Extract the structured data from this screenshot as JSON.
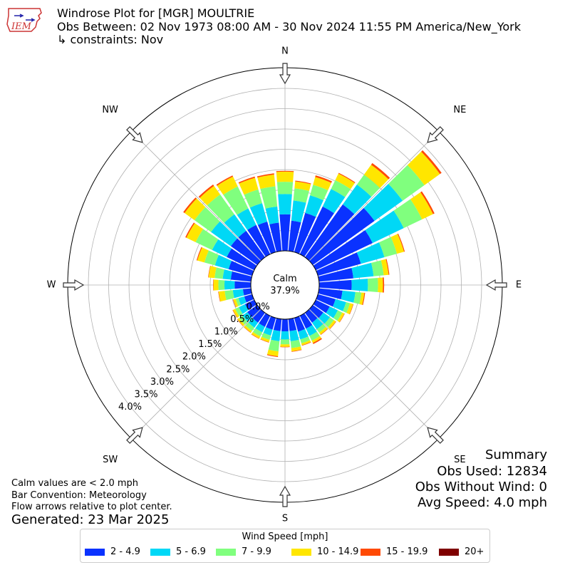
{
  "logo_text": "IEM",
  "header": {
    "title": "Windrose Plot for [MGR] MOULTRIE",
    "subtitle": "Obs Between: 02 Nov 1973 08:00 AM - 30 Nov 2024 11:55 PM America/New_York",
    "constraints": "↳ constraints: Nov"
  },
  "summary": {
    "heading": "Summary",
    "obs_used": "Obs Used: 12834",
    "obs_without_wind": "Obs Without Wind: 0",
    "avg_speed": "Avg Speed: 4.0 mph"
  },
  "notes": {
    "calm_def": "Calm values are < 2.0 mph",
    "bar_convention": "Bar Convention: Meteorology",
    "flow_arrows": "Flow arrows relative to plot center.",
    "generated": "Generated: 23 Mar 2025"
  },
  "chart_data": {
    "type": "windrose",
    "calm_label": "Calm",
    "calm_value": "37.9%",
    "directions": [
      "N",
      "NE",
      "E",
      "SE",
      "S",
      "SW",
      "W",
      "NW"
    ],
    "radial_tick_labels": [
      "0.0%",
      "0.5%",
      "1.0%",
      "1.5%",
      "2.0%",
      "2.5%",
      "3.0%",
      "3.5%",
      "4.0%"
    ],
    "radial_ticks": [
      0,
      0.5,
      1.0,
      1.5,
      2.0,
      2.5,
      3.0,
      3.5,
      4.0
    ],
    "legend_title": "Wind Speed [mph]",
    "bins": [
      {
        "label": "2 - 4.9",
        "color": "#0a32ff"
      },
      {
        "label": "5 - 6.9",
        "color": "#00d8f6"
      },
      {
        "label": "7 - 9.9",
        "color": "#80ff7e"
      },
      {
        "label": "10 - 14.9",
        "color": "#ffe600"
      },
      {
        "label": "15 - 19.9",
        "color": "#ff4a04"
      },
      {
        "label": "20+",
        "color": "#7f0000"
      }
    ],
    "bar_convention": "meteorology (from direction)",
    "sectors": [
      {
        "dir_deg": 0,
        "cum": [
          0.9,
          1.4,
          1.7,
          1.95,
          1.97,
          1.97
        ]
      },
      {
        "dir_deg": 10,
        "cum": [
          0.75,
          1.25,
          1.55,
          1.72,
          1.74,
          1.74
        ]
      },
      {
        "dir_deg": 20,
        "cum": [
          1.0,
          1.45,
          1.72,
          1.92,
          1.96,
          1.96
        ]
      },
      {
        "dir_deg": 30,
        "cum": [
          1.3,
          1.78,
          2.02,
          2.2,
          2.22,
          2.22
        ]
      },
      {
        "dir_deg": 40,
        "cum": [
          1.6,
          2.2,
          2.5,
          2.8,
          2.85,
          2.85
        ]
      },
      {
        "dir_deg": 50,
        "cum": [
          1.87,
          2.72,
          3.38,
          3.85,
          3.9,
          3.9
        ]
      },
      {
        "dir_deg": 60,
        "cum": [
          1.55,
          2.4,
          2.9,
          3.2,
          3.24,
          3.24
        ]
      },
      {
        "dir_deg": 70,
        "cum": [
          1.1,
          1.7,
          2.02,
          2.2,
          2.22,
          2.22
        ]
      },
      {
        "dir_deg": 80,
        "cum": [
          0.85,
          1.35,
          1.6,
          1.72,
          1.74,
          1.74
        ]
      },
      {
        "dir_deg": 90,
        "cum": [
          0.8,
          1.2,
          1.45,
          1.57,
          1.6,
          1.6
        ]
      },
      {
        "dir_deg": 100,
        "cum": [
          0.58,
          0.9,
          1.05,
          1.12,
          1.14,
          1.14
        ]
      },
      {
        "dir_deg": 110,
        "cum": [
          0.45,
          0.72,
          0.82,
          0.9,
          0.91,
          0.91
        ]
      },
      {
        "dir_deg": 120,
        "cum": [
          0.38,
          0.6,
          0.72,
          0.78,
          0.79,
          0.79
        ]
      },
      {
        "dir_deg": 130,
        "cum": [
          0.32,
          0.52,
          0.64,
          0.7,
          0.71,
          0.71
        ]
      },
      {
        "dir_deg": 140,
        "cum": [
          0.3,
          0.5,
          0.6,
          0.66,
          0.67,
          0.67
        ]
      },
      {
        "dir_deg": 150,
        "cum": [
          0.35,
          0.55,
          0.68,
          0.74,
          0.77,
          0.77
        ]
      },
      {
        "dir_deg": 160,
        "cum": [
          0.35,
          0.55,
          0.65,
          0.7,
          0.71,
          0.71
        ]
      },
      {
        "dir_deg": 170,
        "cum": [
          0.3,
          0.55,
          0.72,
          0.8,
          0.81,
          0.81
        ]
      },
      {
        "dir_deg": 180,
        "cum": [
          0.3,
          0.5,
          0.62,
          0.68,
          0.69,
          0.69
        ]
      },
      {
        "dir_deg": 190,
        "cum": [
          0.3,
          0.55,
          0.8,
          0.92,
          0.94,
          0.94
        ]
      },
      {
        "dir_deg": 200,
        "cum": [
          0.3,
          0.45,
          0.56,
          0.62,
          0.63,
          0.63
        ]
      },
      {
        "dir_deg": 210,
        "cum": [
          0.3,
          0.45,
          0.56,
          0.62,
          0.63,
          0.63
        ]
      },
      {
        "dir_deg": 220,
        "cum": [
          0.3,
          0.45,
          0.55,
          0.6,
          0.61,
          0.61
        ]
      },
      {
        "dir_deg": 230,
        "cum": [
          0.3,
          0.45,
          0.55,
          0.6,
          0.61,
          0.61
        ]
      },
      {
        "dir_deg": 240,
        "cum": [
          0.25,
          0.42,
          0.52,
          0.58,
          0.59,
          0.59
        ]
      },
      {
        "dir_deg": 250,
        "cum": [
          0.2,
          0.35,
          0.42,
          0.48,
          0.49,
          0.49
        ]
      },
      {
        "dir_deg": 260,
        "cum": [
          0.2,
          0.45,
          0.65,
          0.8,
          0.81,
          0.81
        ]
      },
      {
        "dir_deg": 270,
        "cum": [
          0.4,
          0.65,
          0.8,
          0.92,
          0.93,
          0.93
        ]
      },
      {
        "dir_deg": 280,
        "cum": [
          0.5,
          0.7,
          0.9,
          1.05,
          1.06,
          1.06
        ]
      },
      {
        "dir_deg": 290,
        "cum": [
          0.6,
          0.95,
          1.22,
          1.4,
          1.42,
          1.42
        ]
      },
      {
        "dir_deg": 300,
        "cum": [
          0.75,
          1.15,
          1.6,
          1.85,
          1.88,
          1.88
        ]
      },
      {
        "dir_deg": 310,
        "cum": [
          0.8,
          1.4,
          1.9,
          2.2,
          2.24,
          2.24
        ]
      },
      {
        "dir_deg": 320,
        "cum": [
          0.8,
          1.3,
          1.9,
          2.16,
          2.2,
          2.2
        ]
      },
      {
        "dir_deg": 330,
        "cum": [
          0.8,
          1.25,
          1.85,
          2.12,
          2.15,
          2.15
        ]
      },
      {
        "dir_deg": 340,
        "cum": [
          0.78,
          1.25,
          1.6,
          1.9,
          1.93,
          1.93
        ]
      },
      {
        "dir_deg": 350,
        "cum": [
          0.7,
          1.1,
          1.6,
          1.89,
          1.92,
          1.92
        ]
      }
    ]
  }
}
